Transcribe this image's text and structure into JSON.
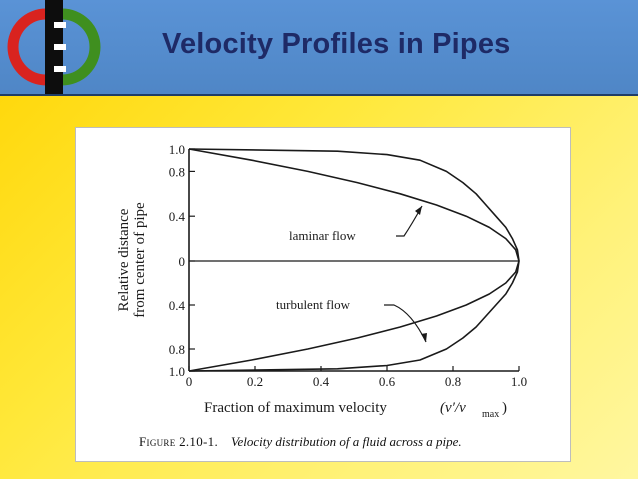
{
  "slide": {
    "title": "Velocity Profiles in Pipes",
    "colors": {
      "header": "#4f86c6",
      "title": "#1e2a66",
      "background": "#ffe83a",
      "logo_red": "#d9231f",
      "logo_green": "#3f8f1f"
    }
  },
  "figure": {
    "caption_label": "Figure 2.10-1.",
    "caption_text": "Velocity distribution of a fluid across a pipe."
  },
  "chart_data": {
    "type": "line",
    "title": "",
    "xlabel": "Fraction of maximum velocity",
    "xlabel_math": "(v′/v",
    "xlabel_sub": "max",
    "xlabel_close": ")",
    "ylabel": [
      "Relative distance",
      "from center of pipe"
    ],
    "xlim": [
      0,
      1.0
    ],
    "ylim_top": [
      0,
      1.0
    ],
    "ylim_bottom": [
      0,
      1.0
    ],
    "xticks": [
      "0",
      "0.2",
      "0.4",
      "0.6",
      "0.8",
      "1.0"
    ],
    "yticks_top": [
      "1.0",
      "0.8",
      "0.4",
      "0"
    ],
    "yticks_bottom": [
      "0.4",
      "0.8",
      "1.0"
    ],
    "annotations": {
      "laminar": "laminar flow",
      "turbulent": "turbulent flow"
    },
    "series": [
      {
        "name": "laminar flow",
        "r": [
          0,
          0.1,
          0.2,
          0.3,
          0.4,
          0.5,
          0.6,
          0.7,
          0.8,
          0.9,
          1.0
        ],
        "v": [
          1.0,
          0.99,
          0.96,
          0.91,
          0.84,
          0.75,
          0.64,
          0.51,
          0.36,
          0.19,
          0.0
        ]
      },
      {
        "name": "turbulent flow",
        "r": [
          0,
          0.1,
          0.2,
          0.3,
          0.4,
          0.5,
          0.6,
          0.7,
          0.8,
          0.9,
          0.95,
          0.98,
          1.0
        ],
        "v": [
          1.0,
          0.995,
          0.98,
          0.96,
          0.93,
          0.9,
          0.87,
          0.83,
          0.78,
          0.7,
          0.6,
          0.45,
          0.0
        ]
      }
    ]
  }
}
